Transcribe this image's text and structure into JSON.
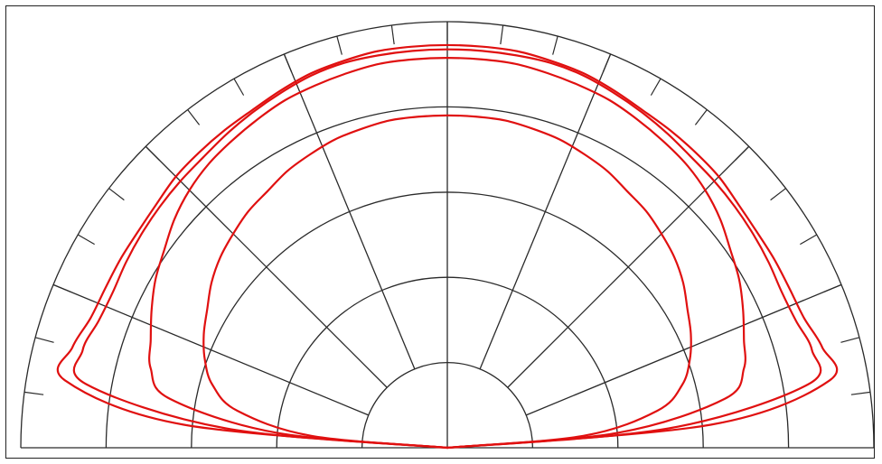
{
  "colors": {
    "grid": "#2a2a2a",
    "series": "#e01010",
    "background": "#ffffff"
  },
  "chart_data": {
    "type": "polar-half",
    "title": "",
    "angle_range_deg": [
      -90,
      90
    ],
    "radial_range": [
      0,
      1
    ],
    "radial_gridlines": [
      0.2,
      0.4,
      0.6,
      0.8,
      1.0
    ],
    "spokes_deg": [
      -67.5,
      -45,
      -22.5,
      0,
      22.5,
      45,
      67.5
    ],
    "outer_ticks_every_deg": 7.5,
    "grid": true,
    "legend": "none",
    "series": [
      {
        "theta": [
          -90,
          -85,
          -80,
          -75,
          -70,
          -65,
          -60,
          -55,
          -50,
          -45,
          -40,
          -35,
          -30,
          -25,
          -20,
          -15,
          -10,
          -5,
          0,
          5,
          10,
          15,
          20,
          25,
          30,
          35,
          40,
          45,
          50,
          55,
          60,
          65,
          70,
          75,
          80,
          85,
          90
        ],
        "r": [
          0.0,
          0.62,
          0.91,
          0.91,
          0.89,
          0.885,
          0.885,
          0.885,
          0.89,
          0.9,
          0.905,
          0.91,
          0.915,
          0.925,
          0.935,
          0.94,
          0.945,
          0.945,
          0.945,
          0.945,
          0.945,
          0.94,
          0.935,
          0.925,
          0.915,
          0.91,
          0.905,
          0.9,
          0.89,
          0.885,
          0.885,
          0.885,
          0.89,
          0.91,
          0.91,
          0.62,
          0.0
        ]
      },
      {
        "theta": [
          -90,
          -85,
          -80,
          -75,
          -70,
          -65,
          -60,
          -55,
          -50,
          -45,
          -40,
          -35,
          -30,
          -25,
          -20,
          -15,
          -10,
          -5,
          0,
          5,
          10,
          15,
          20,
          25,
          30,
          35,
          40,
          45,
          50,
          55,
          60,
          65,
          70,
          75,
          80,
          85,
          90
        ],
        "r": [
          0.0,
          0.52,
          0.86,
          0.885,
          0.87,
          0.865,
          0.87,
          0.875,
          0.88,
          0.885,
          0.89,
          0.9,
          0.91,
          0.92,
          0.93,
          0.935,
          0.935,
          0.935,
          0.935,
          0.935,
          0.935,
          0.935,
          0.93,
          0.92,
          0.91,
          0.9,
          0.89,
          0.885,
          0.88,
          0.875,
          0.87,
          0.865,
          0.87,
          0.885,
          0.86,
          0.52,
          0.0
        ]
      },
      {
        "theta": [
          -90,
          -85,
          -80,
          -75,
          -70,
          -65,
          -60,
          -55,
          -50,
          -45,
          -40,
          -35,
          -30,
          -25,
          -20,
          -15,
          -10,
          -5,
          0,
          5,
          10,
          15,
          20,
          25,
          30,
          35,
          40,
          45,
          50,
          55,
          60,
          65,
          70,
          75,
          80,
          85,
          90
        ],
        "r": [
          0.0,
          0.4,
          0.66,
          0.72,
          0.74,
          0.765,
          0.79,
          0.81,
          0.835,
          0.855,
          0.87,
          0.88,
          0.89,
          0.9,
          0.905,
          0.91,
          0.915,
          0.915,
          0.915,
          0.915,
          0.915,
          0.91,
          0.905,
          0.9,
          0.89,
          0.88,
          0.87,
          0.855,
          0.835,
          0.81,
          0.79,
          0.765,
          0.74,
          0.72,
          0.66,
          0.4,
          0.0
        ]
      },
      {
        "theta": [
          -90,
          -85,
          -80,
          -75,
          -70,
          -65,
          -60,
          -55,
          -50,
          -45,
          -40,
          -35,
          -30,
          -25,
          -20,
          -15,
          -10,
          -5,
          0,
          5,
          10,
          15,
          20,
          25,
          30,
          35,
          40,
          45,
          50,
          55,
          60,
          65,
          70,
          75,
          80,
          85,
          90
        ],
        "r": [
          0.0,
          0.32,
          0.5,
          0.57,
          0.605,
          0.63,
          0.65,
          0.675,
          0.695,
          0.71,
          0.725,
          0.735,
          0.75,
          0.76,
          0.77,
          0.775,
          0.78,
          0.78,
          0.78,
          0.78,
          0.78,
          0.775,
          0.77,
          0.76,
          0.75,
          0.735,
          0.725,
          0.71,
          0.695,
          0.675,
          0.65,
          0.63,
          0.605,
          0.57,
          0.5,
          0.32,
          0.0
        ]
      }
    ]
  }
}
